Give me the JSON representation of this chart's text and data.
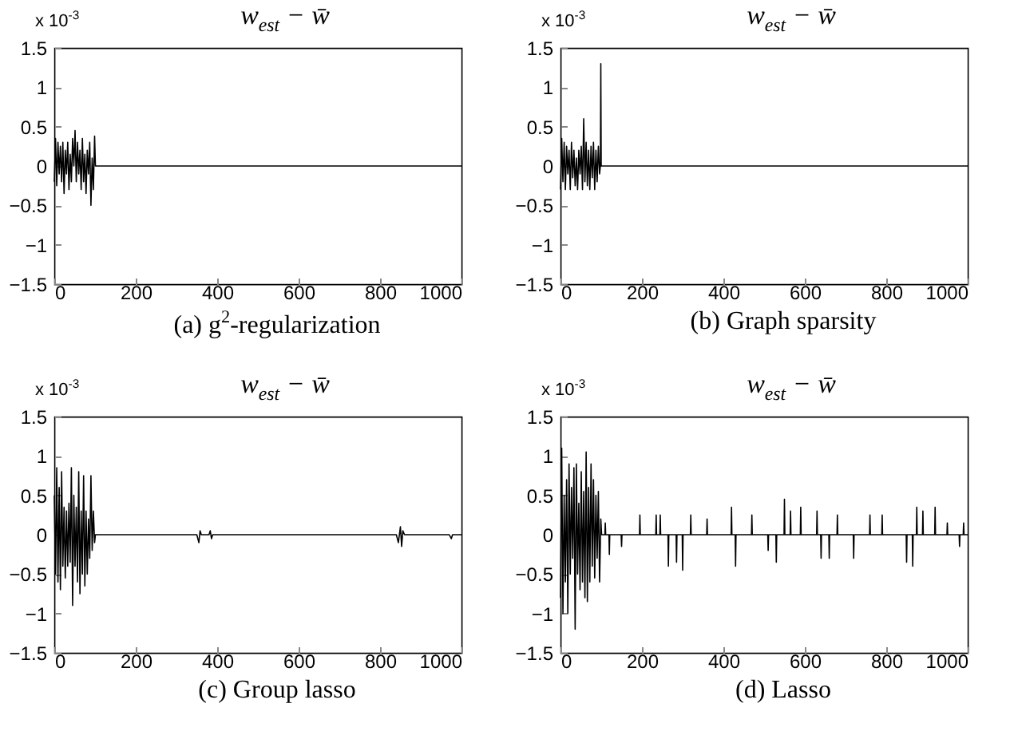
{
  "chart_data": [
    {
      "type": "line",
      "title": "w$_{est}$ − w̄",
      "xlabel": "(a) g$^{2}$-regularization",
      "annotations": [
        "x 10$^{-3}$"
      ],
      "color": "#000000",
      "xlim": [
        0,
        1000
      ],
      "xticks": [
        0,
        200,
        400,
        600,
        800,
        1000
      ],
      "ylim": [
        -1.5,
        1.5
      ],
      "yticks": [
        -1.5,
        -1,
        -0.5,
        0,
        0.5,
        1,
        1.5
      ],
      "x": [
        0,
        3,
        6,
        9,
        12,
        15,
        18,
        21,
        24,
        27,
        30,
        33,
        36,
        39,
        42,
        45,
        48,
        51,
        54,
        57,
        60,
        63,
        66,
        69,
        72,
        75,
        78,
        81,
        84,
        87,
        90,
        93,
        96,
        99,
        101,
        1000
      ],
      "values": [
        -0.2,
        0.35,
        -0.25,
        0.3,
        -0.1,
        0.25,
        -0.2,
        0.3,
        -0.35,
        0.2,
        -0.1,
        0.3,
        -0.3,
        0.15,
        -0.2,
        0.35,
        0,
        0.45,
        -0.2,
        0.3,
        -0.1,
        0.2,
        -0.3,
        0.35,
        -0.2,
        0.15,
        -0.35,
        0.2,
        -0.1,
        0.3,
        -0.5,
        0.1,
        -0.3,
        0.38,
        0,
        0
      ]
    },
    {
      "type": "line",
      "title": "w$_{est}$ − w̄",
      "xlabel": "(b) Graph sparsity",
      "annotations": [
        "x 10$^{-3}$"
      ],
      "color": "#000000",
      "xlim": [
        0,
        1000
      ],
      "xticks": [
        0,
        200,
        400,
        600,
        800,
        1000
      ],
      "ylim": [
        -1.5,
        1.5
      ],
      "yticks": [
        -1.5,
        -1,
        -0.5,
        0,
        0.5,
        1,
        1.5
      ],
      "x": [
        0,
        3,
        6,
        9,
        12,
        15,
        18,
        21,
        24,
        27,
        30,
        33,
        36,
        39,
        42,
        45,
        48,
        51,
        54,
        57,
        60,
        63,
        66,
        69,
        72,
        75,
        78,
        81,
        84,
        87,
        90,
        93,
        96,
        98,
        99,
        100,
        1000
      ],
      "values": [
        -0.3,
        0.35,
        -0.2,
        0.3,
        -0.3,
        0.25,
        -0.1,
        0.2,
        -0.3,
        0.3,
        -0.15,
        0.2,
        -0.25,
        0.1,
        -0.3,
        0.2,
        -0.1,
        0.25,
        -0.3,
        0.6,
        -0.2,
        0.3,
        -0.25,
        0.2,
        -0.3,
        0.25,
        -0.15,
        0.3,
        -0.3,
        0.2,
        -0.2,
        0.25,
        -0.1,
        0,
        1.3,
        0,
        0
      ]
    },
    {
      "type": "line",
      "title": "w$_{est}$ − w̄",
      "xlabel": "(c) Group lasso",
      "annotations": [
        "x 10$^{-3}$"
      ],
      "color": "#000000",
      "xlim": [
        0,
        1000
      ],
      "xticks": [
        0,
        200,
        400,
        600,
        800,
        1000
      ],
      "ylim": [
        -1.5,
        1.5
      ],
      "yticks": [
        -1.5,
        -1,
        -0.5,
        0,
        0.5,
        1,
        1.5
      ],
      "x": [
        0,
        3,
        6,
        9,
        12,
        15,
        18,
        21,
        24,
        27,
        30,
        33,
        36,
        39,
        42,
        45,
        48,
        51,
        54,
        57,
        60,
        63,
        66,
        69,
        72,
        75,
        78,
        81,
        84,
        87,
        90,
        93,
        96,
        99,
        101,
        350,
        355,
        358,
        361,
        380,
        383,
        386,
        389,
        840,
        845,
        850,
        853,
        856,
        860,
        970,
        975,
        978,
        1000
      ],
      "values": [
        0.5,
        -0.5,
        0.85,
        -0.6,
        0.6,
        -0.7,
        0.8,
        -0.4,
        0.35,
        -0.55,
        0.3,
        -0.4,
        0.4,
        -0.35,
        0.85,
        -0.9,
        0.5,
        -0.4,
        0.35,
        -0.6,
        0.8,
        -0.75,
        0.3,
        -0.5,
        0.75,
        -0.65,
        0.3,
        -0.5,
        0.2,
        -0.3,
        0.75,
        -0.2,
        0.3,
        -0.1,
        0,
        0,
        -0.1,
        0.05,
        0,
        0,
        0.05,
        -0.05,
        0,
        0,
        -0.1,
        0.1,
        -0.15,
        0.05,
        0,
        0,
        -0.05,
        0,
        0
      ]
    },
    {
      "type": "line",
      "title": "w$_{est}$ − w̄",
      "xlabel": "(d) Lasso",
      "annotations": [
        "x 10$^{-3}$"
      ],
      "color": "#000000",
      "xlim": [
        0,
        1000
      ],
      "xticks": [
        0,
        200,
        400,
        600,
        800,
        1000
      ],
      "ylim": [
        -1.5,
        1.5
      ],
      "yticks": [
        -1.5,
        -1,
        -0.5,
        0,
        0.5,
        1,
        1.5
      ],
      "x": [
        0,
        3,
        6,
        9,
        12,
        15,
        18,
        21,
        24,
        27,
        30,
        33,
        36,
        39,
        42,
        45,
        48,
        51,
        54,
        57,
        60,
        63,
        66,
        69,
        72,
        75,
        78,
        81,
        84,
        87,
        90,
        93,
        96,
        99,
        101,
        109,
        110,
        111,
        119,
        120,
        121,
        149,
        150,
        151,
        194,
        195,
        196,
        234,
        235,
        236,
        244,
        245,
        246,
        264,
        265,
        266,
        284,
        285,
        286,
        299,
        300,
        301,
        319,
        320,
        321,
        359,
        360,
        361,
        419,
        420,
        421,
        429,
        430,
        431,
        469,
        470,
        471,
        509,
        510,
        511,
        529,
        530,
        531,
        549,
        550,
        551,
        564,
        565,
        566,
        589,
        590,
        591,
        629,
        630,
        631,
        639,
        640,
        641,
        659,
        660,
        661,
        679,
        680,
        681,
        719,
        720,
        721,
        759,
        760,
        761,
        789,
        790,
        791,
        849,
        850,
        851,
        864,
        865,
        866,
        874,
        875,
        876,
        889,
        890,
        891,
        919,
        920,
        921,
        949,
        950,
        951,
        979,
        980,
        981,
        989,
        990,
        991,
        1000
      ],
      "values": [
        -0.8,
        1.1,
        -1,
        0.5,
        -0.6,
        0.7,
        -1,
        0.9,
        -0.5,
        0.6,
        -0.3,
        0.85,
        -1.2,
        0.9,
        -0.5,
        0.4,
        -0.7,
        0.8,
        -0.6,
        0.55,
        -0.8,
        1.05,
        -0.85,
        0.6,
        -0.6,
        0.9,
        -0.4,
        0.7,
        -0.55,
        0.5,
        -0.3,
        0.55,
        -0.6,
        0.2,
        0,
        0,
        0.15,
        0,
        0,
        -0.25,
        0,
        0,
        -0.15,
        0,
        0,
        0.25,
        0,
        0,
        0.25,
        0,
        0,
        0.25,
        0,
        0,
        -0.4,
        0,
        0,
        -0.35,
        0,
        0,
        -0.45,
        0,
        0,
        0.25,
        0,
        0,
        0.2,
        0,
        0,
        0.35,
        0,
        0,
        -0.4,
        0,
        0,
        0.25,
        0,
        0,
        -0.2,
        0,
        0,
        -0.35,
        0,
        0,
        0.45,
        0,
        0,
        0.3,
        0,
        0,
        0.35,
        0,
        0,
        0.3,
        0,
        0,
        -0.3,
        0,
        0,
        -0.3,
        0,
        0,
        0.25,
        0,
        0,
        -0.3,
        0,
        0,
        0.25,
        0,
        0,
        0.25,
        0,
        0,
        -0.35,
        0,
        0,
        -0.4,
        0,
        0,
        0.35,
        0,
        0,
        0.3,
        0,
        0,
        0.35,
        0,
        0,
        0.15,
        0,
        0,
        -0.15,
        0,
        0,
        0.15,
        0,
        0
      ]
    }
  ]
}
